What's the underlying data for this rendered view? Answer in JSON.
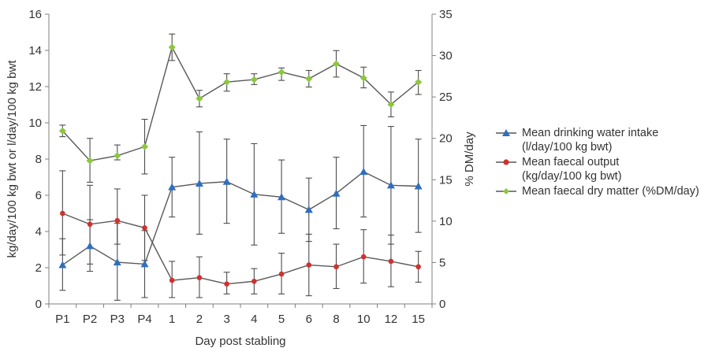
{
  "chart_data": {
    "type": "line",
    "categories": [
      "P1",
      "P2",
      "P3",
      "P4",
      "1",
      "2",
      "3",
      "4",
      "5",
      "6",
      "8",
      "10",
      "12",
      "15"
    ],
    "xlabel": "Day post stabling",
    "ylabel": "kg/day/100 kg bwt or l/day/100 kg bwt",
    "ylabel_right": "% DM/day",
    "ylim": [
      0,
      16
    ],
    "ylim_right": [
      0,
      35
    ],
    "yticks": [
      0,
      2,
      4,
      6,
      8,
      10,
      12,
      14,
      16
    ],
    "yticks_right": [
      0,
      5,
      10,
      15,
      20,
      25,
      30,
      35
    ],
    "grid": false,
    "legend_position": "right",
    "series": [
      {
        "name": "Mean drinking water intake",
        "name_line2": "(l/day/100 kg bwt)",
        "axis": "left",
        "marker": "triangle",
        "color": "#2e6fbf",
        "values": [
          2.15,
          3.2,
          2.3,
          2.2,
          6.45,
          6.65,
          6.75,
          6.05,
          5.9,
          5.2,
          6.1,
          7.3,
          6.55,
          6.5
        ],
        "err_low": [
          0.75,
          1.8,
          0.2,
          0.35,
          4.8,
          3.85,
          4.45,
          3.25,
          3.9,
          3.45,
          4.15,
          4.8,
          3.3,
          3.95
        ],
        "err_high": [
          3.6,
          4.65,
          4.45,
          4.05,
          8.1,
          9.5,
          9.1,
          8.85,
          7.95,
          6.95,
          8.1,
          9.85,
          9.8,
          9.1
        ]
      },
      {
        "name": "Mean faecal output",
        "name_line2": "(kg/day/100 kg bwt)",
        "axis": "left",
        "marker": "circle",
        "color": "#d0312d",
        "values": [
          5.0,
          4.4,
          4.6,
          4.2,
          1.3,
          1.45,
          1.1,
          1.25,
          1.65,
          2.15,
          2.05,
          2.6,
          2.35,
          2.05
        ],
        "err_low": [
          2.7,
          2.2,
          3.3,
          2.4,
          0.35,
          0.35,
          0.55,
          0.55,
          0.55,
          0.45,
          0.85,
          1.15,
          0.95,
          1.2
        ],
        "err_high": [
          7.35,
          6.55,
          6.35,
          6.0,
          2.35,
          2.6,
          1.75,
          1.95,
          2.8,
          3.85,
          3.3,
          4.1,
          3.8,
          2.9
        ]
      },
      {
        "name": "Mean faecal dry matter (%DM/day)",
        "name_line2": "",
        "axis": "right",
        "marker": "diamond",
        "color": "#8dc63f",
        "values": [
          20.9,
          17.3,
          17.9,
          19.0,
          31.0,
          24.8,
          26.8,
          27.1,
          28.0,
          27.2,
          29.0,
          27.3,
          24.1,
          26.8
        ],
        "err_low": [
          20.2,
          14.7,
          17.4,
          15.7,
          29.4,
          23.8,
          25.7,
          26.5,
          27.0,
          26.2,
          27.4,
          26.1,
          22.6,
          25.3
        ],
        "err_high": [
          21.6,
          20.0,
          19.2,
          22.3,
          32.6,
          25.8,
          27.8,
          27.8,
          28.5,
          28.2,
          30.6,
          28.6,
          25.6,
          28.2
        ]
      }
    ]
  }
}
